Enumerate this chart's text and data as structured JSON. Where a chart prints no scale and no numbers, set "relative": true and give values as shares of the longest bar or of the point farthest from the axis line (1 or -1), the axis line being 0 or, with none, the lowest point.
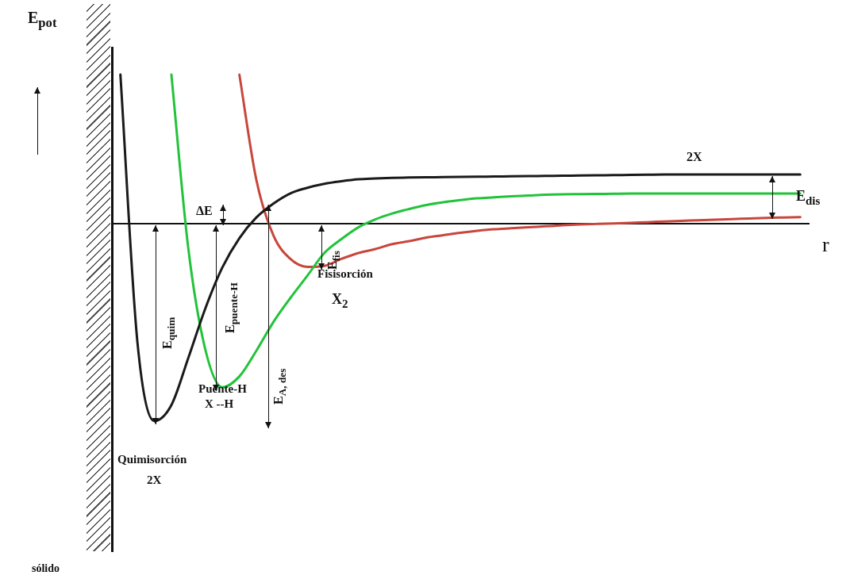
{
  "chart_data": {
    "type": "line",
    "relative": true,
    "ylabel": "E$_{pot}$",
    "xlabel": "r",
    "legend": false,
    "grid": false,
    "marker": "none",
    "line_style": "solid",
    "categories": [
      null,
      null,
      null,
      null,
      null,
      null,
      null,
      null,
      null,
      null,
      null,
      null,
      null,
      null,
      null,
      null,
      null,
      null,
      null,
      null,
      null,
      null,
      null,
      null,
      null,
      null,
      null,
      null,
      null,
      null,
      null,
      null,
      null,
      null,
      null,
      null,
      null,
      null,
      null,
      null,
      null
    ],
    "series": [
      {
        "color": "#1a1a1a",
        "values": [
          0.753,
          -0.6,
          -1,
          -0.92,
          -0.68,
          -0.43,
          -0.223,
          -0.075,
          0.03,
          0.1,
          0.152,
          0.18,
          0.2,
          0.213,
          0.223,
          0.227,
          0.23,
          0.232,
          0.233,
          0.234,
          0.235,
          0.236,
          0.237,
          0.238,
          0.239,
          0.24,
          0.241,
          0.242,
          0.243,
          0.244,
          0.245,
          0.246,
          0.247,
          0.247,
          0.247,
          0.247,
          0.247,
          0.247,
          0.247,
          0.247,
          0.247
        ]
      },
      {
        "color": "#22c33a",
        "values": [
          null,
          null,
          null,
          0.753,
          -0.13,
          -0.64,
          -0.83,
          -0.775,
          -0.645,
          -0.5,
          -0.378,
          -0.265,
          -0.15,
          -0.08,
          -0.02,
          0.02,
          0.05,
          0.073,
          0.093,
          0.107,
          0.118,
          0.127,
          0.132,
          0.137,
          0.141,
          0.145,
          0.147,
          0.148,
          0.149,
          0.15,
          0.151,
          0.151,
          0.151,
          0.151,
          0.151,
          0.151,
          0.151,
          0.151,
          0.151,
          0.151,
          0.151
        ]
      },
      {
        "color": "#c8463c",
        "values": [
          null,
          null,
          null,
          null,
          null,
          null,
          null,
          0.753,
          0.22,
          -0.06,
          -0.18,
          -0.22,
          -0.215,
          -0.18,
          -0.15,
          -0.13,
          -0.105,
          -0.09,
          -0.072,
          -0.06,
          -0.048,
          -0.038,
          -0.03,
          -0.025,
          -0.02,
          -0.015,
          -0.01,
          -0.006,
          -0.003,
          0,
          0.003,
          0.006,
          0.01,
          0.013,
          0.016,
          0.019,
          0.022,
          0.025,
          0.028,
          0.03,
          0.032
        ]
      }
    ],
    "annotations": [
      "2X",
      "E$_{dis}$",
      "ΔE",
      "E$_{fis}$",
      "Fisisorción",
      "X$_{2}$",
      "E$_{quim}$",
      "E$_{puente-H}$",
      "E$_{A, des}$",
      "Puente-H",
      "X --H",
      "Quimisorción",
      "2X",
      "sólido"
    ]
  }
}
